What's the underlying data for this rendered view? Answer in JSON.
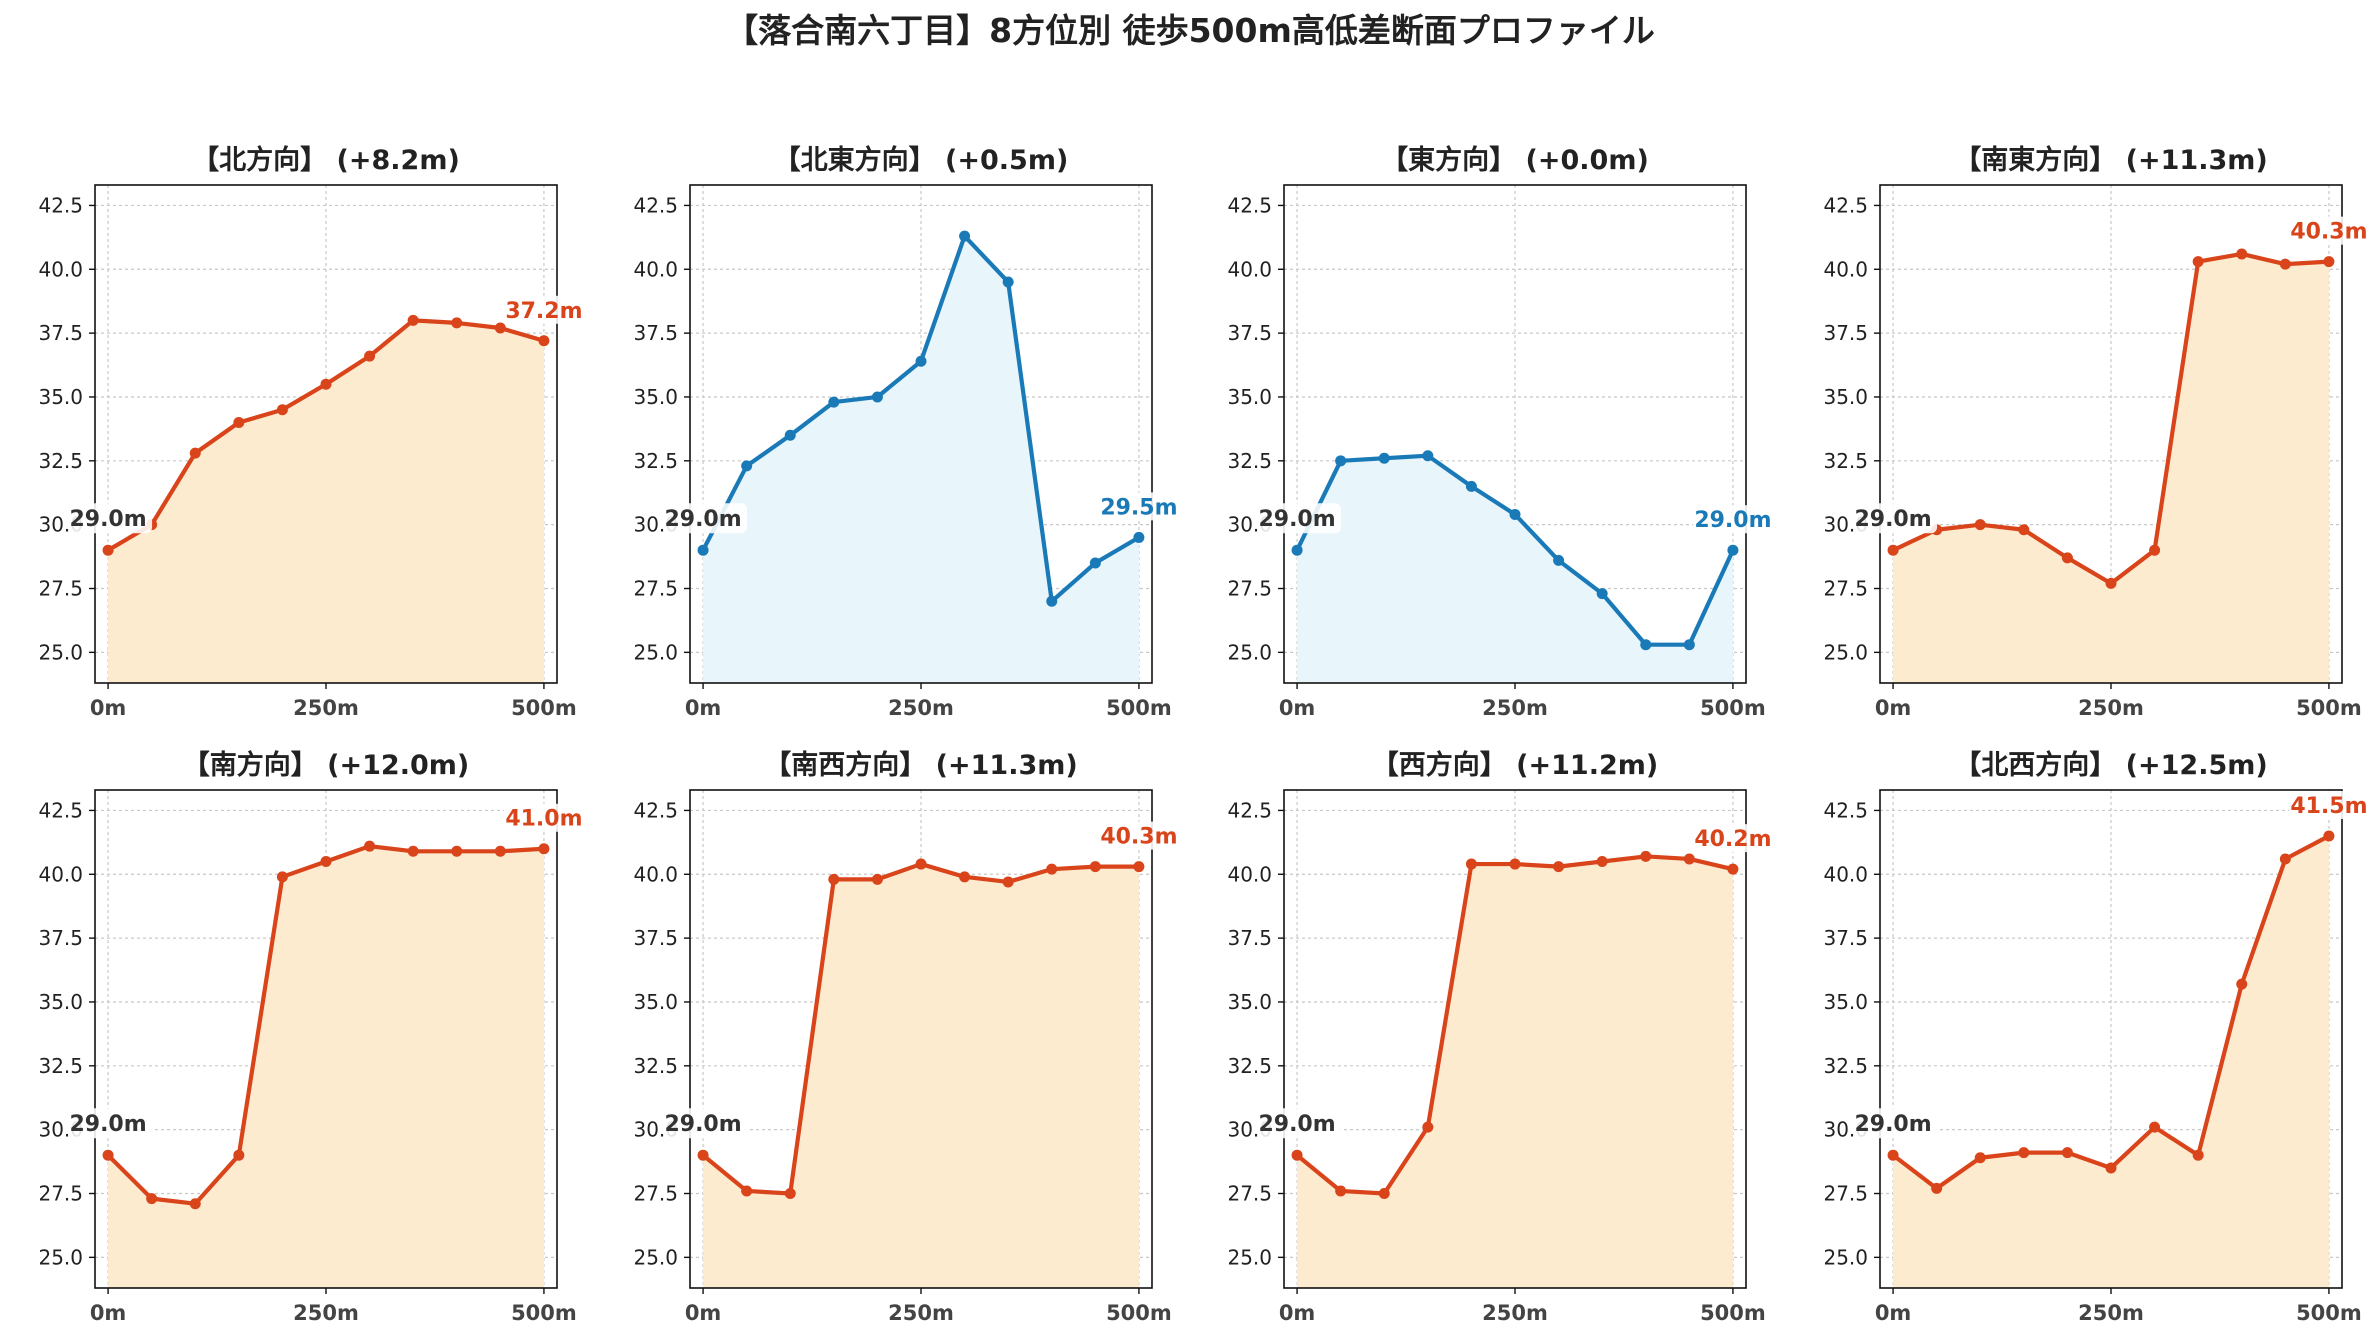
{
  "figure": {
    "title": "【落合南六丁目】8方位別 徒歩500m高低差断面プロファイル"
  },
  "colors": {
    "up_line": "#d9441a",
    "up_fill": "#fdebd0",
    "flat_line": "#1a7ab8",
    "flat_fill": "#e8f5fb",
    "grid": "#c8c8c8",
    "text": "#222222",
    "start_label": "#333333"
  },
  "chart_data": [
    {
      "type": "area",
      "title": "【北方向】 (+8.2m)",
      "trend": "up",
      "x": [
        0,
        50,
        100,
        150,
        200,
        250,
        300,
        350,
        400,
        450,
        500
      ],
      "y": [
        29.0,
        30.0,
        32.8,
        34.0,
        34.5,
        35.5,
        36.6,
        38.0,
        37.9,
        37.7,
        37.2
      ],
      "start_label": "29.0m",
      "end_label": "37.2m",
      "ylim": [
        23.8,
        43.3
      ],
      "xlim": [
        -15,
        515
      ],
      "xticks": [
        0,
        250,
        500
      ],
      "xtick_labels": [
        "0m",
        "250m",
        "500m"
      ],
      "yticks": [
        25.0,
        27.5,
        30.0,
        32.5,
        35.0,
        37.5,
        40.0,
        42.5
      ],
      "ytick_labels": [
        "25.0",
        "27.5",
        "30.0",
        "32.5",
        "35.0",
        "37.5",
        "40.0",
        "42.5"
      ],
      "grid": true
    },
    {
      "type": "area",
      "title": "【北東方向】 (+0.5m)",
      "trend": "flat",
      "x": [
        0,
        50,
        100,
        150,
        200,
        250,
        300,
        350,
        400,
        450,
        500
      ],
      "y": [
        29.0,
        32.3,
        33.5,
        34.8,
        35.0,
        36.4,
        41.3,
        39.5,
        27.0,
        28.5,
        29.5
      ],
      "start_label": "29.0m",
      "end_label": "29.5m",
      "ylim": [
        23.8,
        43.3
      ],
      "xlim": [
        -15,
        515
      ],
      "xticks": [
        0,
        250,
        500
      ],
      "xtick_labels": [
        "0m",
        "250m",
        "500m"
      ],
      "yticks": [
        25.0,
        27.5,
        30.0,
        32.5,
        35.0,
        37.5,
        40.0,
        42.5
      ],
      "ytick_labels": [
        "25.0",
        "27.5",
        "30.0",
        "32.5",
        "35.0",
        "37.5",
        "40.0",
        "42.5"
      ],
      "grid": true
    },
    {
      "type": "area",
      "title": "【東方向】 (+0.0m)",
      "trend": "flat",
      "x": [
        0,
        50,
        100,
        150,
        200,
        250,
        300,
        350,
        400,
        450,
        500
      ],
      "y": [
        29.0,
        32.5,
        32.6,
        32.7,
        31.5,
        30.4,
        28.6,
        27.3,
        25.3,
        25.3,
        29.0
      ],
      "start_label": "29.0m",
      "end_label": "29.0m",
      "ylim": [
        23.8,
        43.3
      ],
      "xlim": [
        -15,
        515
      ],
      "xticks": [
        0,
        250,
        500
      ],
      "xtick_labels": [
        "0m",
        "250m",
        "500m"
      ],
      "yticks": [
        25.0,
        27.5,
        30.0,
        32.5,
        35.0,
        37.5,
        40.0,
        42.5
      ],
      "ytick_labels": [
        "25.0",
        "27.5",
        "30.0",
        "32.5",
        "35.0",
        "37.5",
        "40.0",
        "42.5"
      ],
      "grid": true
    },
    {
      "type": "area",
      "title": "【南東方向】 (+11.3m)",
      "trend": "up",
      "x": [
        0,
        50,
        100,
        150,
        200,
        250,
        300,
        350,
        400,
        450,
        500
      ],
      "y": [
        29.0,
        29.8,
        30.0,
        29.8,
        28.7,
        27.7,
        29.0,
        40.3,
        40.6,
        40.2,
        40.3
      ],
      "start_label": "29.0m",
      "end_label": "40.3m",
      "ylim": [
        23.8,
        43.3
      ],
      "xlim": [
        -15,
        515
      ],
      "xticks": [
        0,
        250,
        500
      ],
      "xtick_labels": [
        "0m",
        "250m",
        "500m"
      ],
      "yticks": [
        25.0,
        27.5,
        30.0,
        32.5,
        35.0,
        37.5,
        40.0,
        42.5
      ],
      "ytick_labels": [
        "25.0",
        "27.5",
        "30.0",
        "32.5",
        "35.0",
        "37.5",
        "40.0",
        "42.5"
      ],
      "grid": true
    },
    {
      "type": "area",
      "title": "【南方向】 (+12.0m)",
      "trend": "up",
      "x": [
        0,
        50,
        100,
        150,
        200,
        250,
        300,
        350,
        400,
        450,
        500
      ],
      "y": [
        29.0,
        27.3,
        27.1,
        29.0,
        39.9,
        40.5,
        41.1,
        40.9,
        40.9,
        40.9,
        41.0
      ],
      "start_label": "29.0m",
      "end_label": "41.0m",
      "ylim": [
        23.8,
        43.3
      ],
      "xlim": [
        -15,
        515
      ],
      "xticks": [
        0,
        250,
        500
      ],
      "xtick_labels": [
        "0m",
        "250m",
        "500m"
      ],
      "yticks": [
        25.0,
        27.5,
        30.0,
        32.5,
        35.0,
        37.5,
        40.0,
        42.5
      ],
      "ytick_labels": [
        "25.0",
        "27.5",
        "30.0",
        "32.5",
        "35.0",
        "37.5",
        "40.0",
        "42.5"
      ],
      "grid": true
    },
    {
      "type": "area",
      "title": "【南西方向】 (+11.3m)",
      "trend": "up",
      "x": [
        0,
        50,
        100,
        150,
        200,
        250,
        300,
        350,
        400,
        450,
        500
      ],
      "y": [
        29.0,
        27.6,
        27.5,
        39.8,
        39.8,
        40.4,
        39.9,
        39.7,
        40.2,
        40.3,
        40.3
      ],
      "start_label": "29.0m",
      "end_label": "40.3m",
      "ylim": [
        23.8,
        43.3
      ],
      "xlim": [
        -15,
        515
      ],
      "xticks": [
        0,
        250,
        500
      ],
      "xtick_labels": [
        "0m",
        "250m",
        "500m"
      ],
      "yticks": [
        25.0,
        27.5,
        30.0,
        32.5,
        35.0,
        37.5,
        40.0,
        42.5
      ],
      "ytick_labels": [
        "25.0",
        "27.5",
        "30.0",
        "32.5",
        "35.0",
        "37.5",
        "40.0",
        "42.5"
      ],
      "grid": true
    },
    {
      "type": "area",
      "title": "【西方向】 (+11.2m)",
      "trend": "up",
      "x": [
        0,
        50,
        100,
        150,
        200,
        250,
        300,
        350,
        400,
        450,
        500
      ],
      "y": [
        29.0,
        27.6,
        27.5,
        30.1,
        40.4,
        40.4,
        40.3,
        40.5,
        40.7,
        40.6,
        40.2
      ],
      "start_label": "29.0m",
      "end_label": "40.2m",
      "ylim": [
        23.8,
        43.3
      ],
      "xlim": [
        -15,
        515
      ],
      "xticks": [
        0,
        250,
        500
      ],
      "xtick_labels": [
        "0m",
        "250m",
        "500m"
      ],
      "yticks": [
        25.0,
        27.5,
        30.0,
        32.5,
        35.0,
        37.5,
        40.0,
        42.5
      ],
      "ytick_labels": [
        "25.0",
        "27.5",
        "30.0",
        "32.5",
        "35.0",
        "37.5",
        "40.0",
        "42.5"
      ],
      "grid": true
    },
    {
      "type": "area",
      "title": "【北西方向】 (+12.5m)",
      "trend": "up",
      "x": [
        0,
        50,
        100,
        150,
        200,
        250,
        300,
        350,
        400,
        450,
        500
      ],
      "y": [
        29.0,
        27.7,
        28.9,
        29.1,
        29.1,
        28.5,
        30.1,
        29.0,
        35.7,
        40.6,
        41.5
      ],
      "start_label": "29.0m",
      "end_label": "41.5m",
      "ylim": [
        23.8,
        43.3
      ],
      "xlim": [
        -15,
        515
      ],
      "xticks": [
        0,
        250,
        500
      ],
      "xtick_labels": [
        "0m",
        "250m",
        "500m"
      ],
      "yticks": [
        25.0,
        27.5,
        30.0,
        32.5,
        35.0,
        37.5,
        40.0,
        42.5
      ],
      "ytick_labels": [
        "25.0",
        "27.5",
        "30.0",
        "32.5",
        "35.0",
        "37.5",
        "40.0",
        "42.5"
      ],
      "grid": true
    }
  ]
}
